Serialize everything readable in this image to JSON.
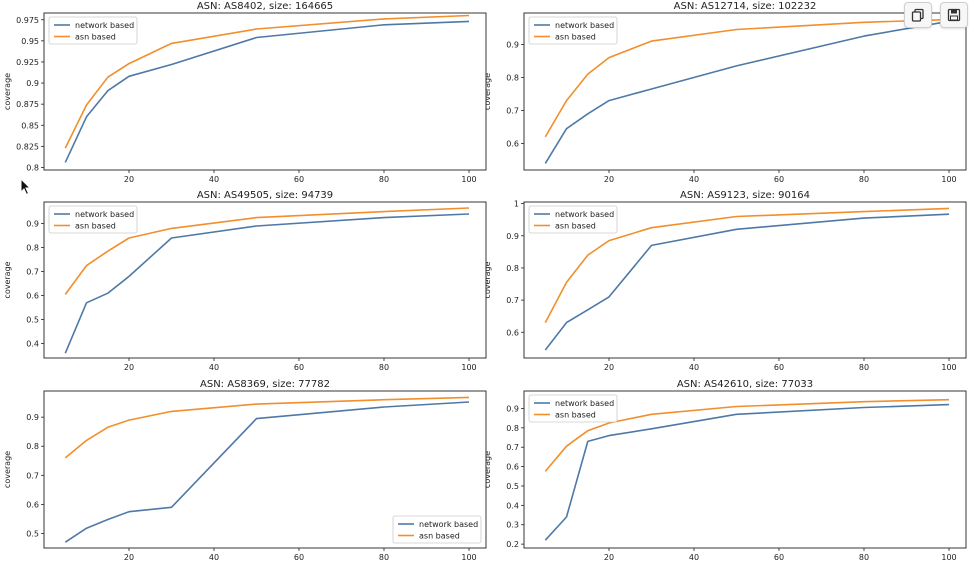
{
  "toolbar": {
    "buttons": [
      {
        "icon": "copy-icon"
      },
      {
        "icon": "save-icon"
      }
    ]
  },
  "colors": {
    "network": "#4e79a7",
    "asn": "#f28e2b",
    "axis": "#222222",
    "text": "#222222"
  },
  "chart_data": [
    {
      "type": "line",
      "title": "ASN: AS8402, size: 164665",
      "ylabel": "coverage",
      "xlim": [
        0,
        104
      ],
      "ylim": [
        0.797,
        0.983
      ],
      "xticks": [
        20,
        40,
        60,
        80,
        100
      ],
      "yticks": [
        0.8,
        0.825,
        0.85,
        0.875,
        0.9,
        0.925,
        0.95,
        0.975
      ],
      "legend": "top-left",
      "series": [
        {
          "name": "network based",
          "x": [
            5,
            10,
            15,
            20,
            30,
            50,
            80,
            100
          ],
          "y": [
            0.806,
            0.86,
            0.891,
            0.908,
            0.922,
            0.954,
            0.969,
            0.973
          ]
        },
        {
          "name": "asn based",
          "x": [
            5,
            10,
            15,
            20,
            30,
            50,
            80,
            100
          ],
          "y": [
            0.823,
            0.874,
            0.907,
            0.923,
            0.947,
            0.964,
            0.976,
            0.98
          ]
        }
      ]
    },
    {
      "type": "line",
      "title": "ASN: AS12714, size: 102232",
      "ylabel": "coverage",
      "xlim": [
        0,
        104
      ],
      "ylim": [
        0.52,
        0.995
      ],
      "xticks": [
        20,
        40,
        60,
        80,
        100
      ],
      "yticks": [
        0.6,
        0.7,
        0.8,
        0.9
      ],
      "legend": "top-left",
      "series": [
        {
          "name": "network based",
          "x": [
            5,
            10,
            15,
            20,
            30,
            50,
            80,
            100
          ],
          "y": [
            0.54,
            0.645,
            0.69,
            0.73,
            0.765,
            0.835,
            0.925,
            0.97
          ]
        },
        {
          "name": "asn based",
          "x": [
            5,
            10,
            15,
            20,
            30,
            50,
            80,
            100
          ],
          "y": [
            0.62,
            0.73,
            0.81,
            0.86,
            0.91,
            0.945,
            0.967,
            0.975
          ]
        }
      ]
    },
    {
      "type": "line",
      "title": "ASN: AS49505, size: 94739",
      "ylabel": "coverage",
      "xlim": [
        0,
        104
      ],
      "ylim": [
        0.34,
        0.99
      ],
      "xticks": [
        20,
        40,
        60,
        80,
        100
      ],
      "yticks": [
        0.4,
        0.5,
        0.6,
        0.7,
        0.8,
        0.9
      ],
      "legend": "top-left",
      "series": [
        {
          "name": "network based",
          "x": [
            5,
            10,
            15,
            20,
            30,
            50,
            80,
            100
          ],
          "y": [
            0.36,
            0.57,
            0.61,
            0.68,
            0.84,
            0.89,
            0.925,
            0.94
          ]
        },
        {
          "name": "asn based",
          "x": [
            5,
            10,
            15,
            20,
            30,
            50,
            80,
            100
          ],
          "y": [
            0.605,
            0.725,
            0.785,
            0.84,
            0.88,
            0.925,
            0.95,
            0.965
          ]
        }
      ]
    },
    {
      "type": "line",
      "title": "ASN: AS9123, size: 90164",
      "ylabel": "coverage",
      "xlim": [
        0,
        104
      ],
      "ylim": [
        0.52,
        1.005
      ],
      "xticks": [
        20,
        40,
        60,
        80,
        100
      ],
      "yticks": [
        0.6,
        0.7,
        0.8,
        0.9,
        1.0
      ],
      "legend": "top-left",
      "series": [
        {
          "name": "network based",
          "x": [
            5,
            10,
            15,
            20,
            30,
            50,
            80,
            100
          ],
          "y": [
            0.545,
            0.63,
            0.67,
            0.71,
            0.87,
            0.92,
            0.955,
            0.967
          ]
        },
        {
          "name": "asn based",
          "x": [
            5,
            10,
            15,
            20,
            30,
            50,
            80,
            100
          ],
          "y": [
            0.63,
            0.755,
            0.84,
            0.885,
            0.925,
            0.96,
            0.975,
            0.985
          ]
        }
      ]
    },
    {
      "type": "line",
      "title": "ASN: AS8369, size: 77782",
      "ylabel": "coverage",
      "xlim": [
        0,
        104
      ],
      "ylim": [
        0.45,
        0.99
      ],
      "xticks": [
        20,
        40,
        60,
        80,
        100
      ],
      "yticks": [
        0.5,
        0.6,
        0.7,
        0.8,
        0.9
      ],
      "legend": "bottom-right",
      "series": [
        {
          "name": "network based",
          "x": [
            5,
            10,
            15,
            20,
            30,
            50,
            80,
            100
          ],
          "y": [
            0.47,
            0.518,
            0.548,
            0.575,
            0.59,
            0.895,
            0.935,
            0.952
          ]
        },
        {
          "name": "asn based",
          "x": [
            5,
            10,
            15,
            20,
            30,
            50,
            80,
            100
          ],
          "y": [
            0.76,
            0.82,
            0.865,
            0.89,
            0.92,
            0.945,
            0.96,
            0.968
          ]
        }
      ]
    },
    {
      "type": "line",
      "title": "ASN: AS42610, size: 77033",
      "ylabel": "coverage",
      "xlim": [
        0,
        104
      ],
      "ylim": [
        0.18,
        0.99
      ],
      "xticks": [
        20,
        40,
        60,
        80,
        100
      ],
      "yticks": [
        0.2,
        0.3,
        0.4,
        0.5,
        0.6,
        0.7,
        0.8,
        0.9
      ],
      "legend": "top-left",
      "series": [
        {
          "name": "network based",
          "x": [
            5,
            10,
            15,
            20,
            30,
            50,
            80,
            100
          ],
          "y": [
            0.22,
            0.34,
            0.73,
            0.76,
            0.795,
            0.87,
            0.905,
            0.92
          ]
        },
        {
          "name": "asn based",
          "x": [
            5,
            10,
            15,
            20,
            30,
            50,
            80,
            100
          ],
          "y": [
            0.575,
            0.705,
            0.785,
            0.825,
            0.87,
            0.91,
            0.935,
            0.945
          ]
        }
      ]
    }
  ]
}
